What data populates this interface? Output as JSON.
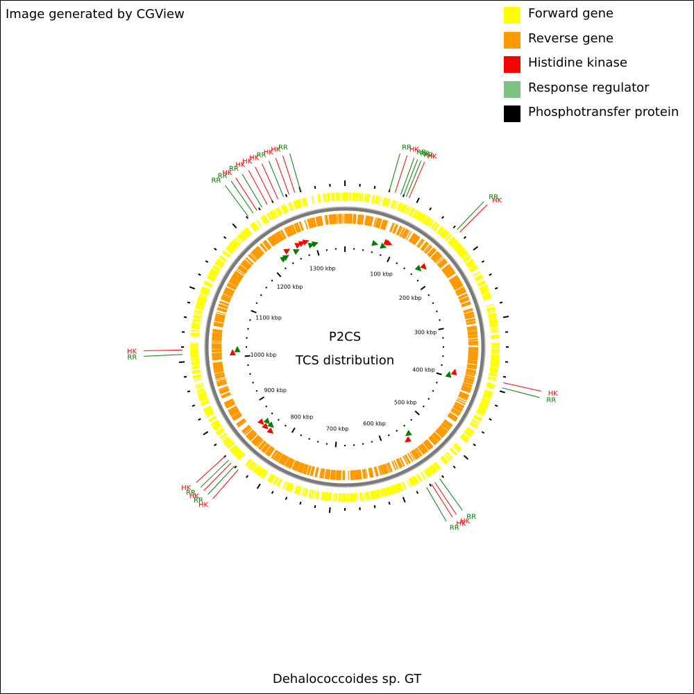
{
  "credit": "Image generated by CGView",
  "legend": [
    {
      "label": "Forward gene",
      "color": "#ffff00"
    },
    {
      "label": "Reverse gene",
      "color": "#ff9900"
    },
    {
      "label": "Histidine kinase",
      "color": "#ff0000"
    },
    {
      "label": "Response regulator",
      "color": "#80c080"
    },
    {
      "label": "Phosphotransfer protein",
      "color": "#000000"
    }
  ],
  "center_title": "P2CS",
  "center_subtitle": "TCS distribution",
  "organism": "Dehalococcoides sp. GT",
  "genome_length_kbp": 1360,
  "tick_labels": [
    "100 kbp",
    "200 kbp",
    "300 kbp",
    "400 kbp",
    "500 kbp",
    "600 kbp",
    "700 kbp",
    "800 kbp",
    "900 kbp",
    "1000 kbp",
    "1100 kbp",
    "1200 kbp",
    "1300 kbp"
  ],
  "tcs_labels": [
    {
      "text": "RR",
      "kind": "RR",
      "pos_kbp": 60
    },
    {
      "text": "HK",
      "kind": "HK",
      "pos_kbp": 68
    },
    {
      "text": "RR",
      "kind": "RR",
      "pos_kbp": 76
    },
    {
      "text": "RR",
      "kind": "RR",
      "pos_kbp": 80
    },
    {
      "text": "RR",
      "kind": "RR",
      "pos_kbp": 84
    },
    {
      "text": "HK",
      "kind": "HK",
      "pos_kbp": 88
    },
    {
      "text": "RR",
      "kind": "RR",
      "pos_kbp": 165
    },
    {
      "text": "HK",
      "kind": "HK",
      "pos_kbp": 170
    },
    {
      "text": "HK",
      "kind": "HK",
      "pos_kbp": 388
    },
    {
      "text": "RR",
      "kind": "RR",
      "pos_kbp": 395
    },
    {
      "text": "RR",
      "kind": "RR",
      "pos_kbp": 545
    },
    {
      "text": "HK",
      "kind": "HK",
      "pos_kbp": 553
    },
    {
      "text": "HK",
      "kind": "HK",
      "pos_kbp": 558
    },
    {
      "text": "RR",
      "kind": "RR",
      "pos_kbp": 566
    },
    {
      "text": "HK",
      "kind": "HK",
      "pos_kbp": 835
    },
    {
      "text": "RR",
      "kind": "RR",
      "pos_kbp": 842
    },
    {
      "text": "HK",
      "kind": "HK",
      "pos_kbp": 848
    },
    {
      "text": "RR",
      "kind": "RR",
      "pos_kbp": 853
    },
    {
      "text": "HK",
      "kind": "HK",
      "pos_kbp": 860
    },
    {
      "text": "RR",
      "kind": "RR",
      "pos_kbp": 1010
    },
    {
      "text": "HK",
      "kind": "HK",
      "pos_kbp": 1016
    },
    {
      "text": "RR",
      "kind": "RR",
      "pos_kbp": 1222
    },
    {
      "text": "RR",
      "kind": "RR",
      "pos_kbp": 1230
    },
    {
      "text": "HK",
      "kind": "HK",
      "pos_kbp": 1236
    },
    {
      "text": "RR",
      "kind": "RR",
      "pos_kbp": 1244
    },
    {
      "text": "HK",
      "kind": "HK",
      "pos_kbp": 1252
    },
    {
      "text": "HK",
      "kind": "HK",
      "pos_kbp": 1260
    },
    {
      "text": "HK",
      "kind": "HK",
      "pos_kbp": 1268
    },
    {
      "text": "RR",
      "kind": "RR",
      "pos_kbp": 1276
    },
    {
      "text": "HK",
      "kind": "HK",
      "pos_kbp": 1284
    },
    {
      "text": "HK",
      "kind": "HK",
      "pos_kbp": 1292
    },
    {
      "text": "RR",
      "kind": "RR",
      "pos_kbp": 1300
    }
  ],
  "tcs_markers": [
    {
      "kind": "RR",
      "pos_kbp": 62,
      "strand": "forward"
    },
    {
      "kind": "RR",
      "pos_kbp": 80,
      "strand": "forward"
    },
    {
      "kind": "HK",
      "pos_kbp": 84,
      "strand": "forward"
    },
    {
      "kind": "HK",
      "pos_kbp": 88,
      "strand": "forward"
    },
    {
      "kind": "RR",
      "pos_kbp": 165,
      "strand": "forward"
    },
    {
      "kind": "HK",
      "pos_kbp": 170,
      "strand": "forward"
    },
    {
      "kind": "HK",
      "pos_kbp": 388,
      "strand": "reverse"
    },
    {
      "kind": "RR",
      "pos_kbp": 395,
      "strand": "reverse"
    },
    {
      "kind": "RR",
      "pos_kbp": 545,
      "strand": "forward"
    },
    {
      "kind": "HK",
      "pos_kbp": 553,
      "strand": "forward"
    },
    {
      "kind": "HK",
      "pos_kbp": 835,
      "strand": "reverse"
    },
    {
      "kind": "RR",
      "pos_kbp": 842,
      "strand": "reverse"
    },
    {
      "kind": "HK",
      "pos_kbp": 848,
      "strand": "reverse"
    },
    {
      "kind": "RR",
      "pos_kbp": 853,
      "strand": "reverse"
    },
    {
      "kind": "HK",
      "pos_kbp": 860,
      "strand": "reverse"
    },
    {
      "kind": "HK",
      "pos_kbp": 1010,
      "strand": "forward"
    },
    {
      "kind": "RR",
      "pos_kbp": 1016,
      "strand": "forward"
    },
    {
      "kind": "RR",
      "pos_kbp": 1230,
      "strand": "forward"
    },
    {
      "kind": "RR",
      "pos_kbp": 1236,
      "strand": "forward"
    },
    {
      "kind": "HK",
      "pos_kbp": 1244,
      "strand": "forward"
    },
    {
      "kind": "RR",
      "pos_kbp": 1260,
      "strand": "forward"
    },
    {
      "kind": "HK",
      "pos_kbp": 1268,
      "strand": "forward"
    },
    {
      "kind": "HK",
      "pos_kbp": 1276,
      "strand": "forward"
    },
    {
      "kind": "HK",
      "pos_kbp": 1284,
      "strand": "forward"
    },
    {
      "kind": "RR",
      "pos_kbp": 1292,
      "strand": "forward"
    },
    {
      "kind": "RR",
      "pos_kbp": 1300,
      "strand": "forward"
    }
  ]
}
